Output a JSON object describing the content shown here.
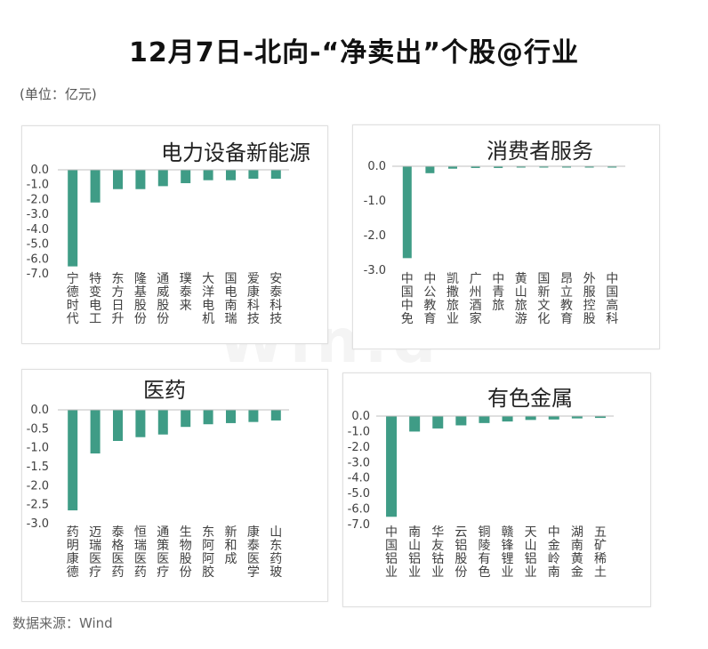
{
  "page": {
    "title": "12月7日-北向-“净卖出”个股@行业",
    "unit": "(单位：亿元)",
    "source": "数据来源：Wind",
    "watermark": "Win.d"
  },
  "colors": {
    "bar": "#3f9c86",
    "axis": "#bfbfbf",
    "text": "#404040"
  },
  "chart_data": [
    {
      "type": "bar",
      "title": "电力设备新能源",
      "categories": [
        "宁德时代",
        "特变电工",
        "东方日升",
        "隆基股份",
        "通威股份",
        "璞泰来",
        "大洋电机",
        "国电南瑞",
        "爱康科技",
        "安泰科技"
      ],
      "values": [
        -6.5,
        -2.2,
        -1.3,
        -1.3,
        -1.1,
        -0.9,
        -0.7,
        -0.7,
        -0.6,
        -0.6
      ],
      "ylim": [
        -7.0,
        0.0
      ],
      "yticks": [
        "0.0",
        "-1.0",
        "-2.0",
        "-3.0",
        "-4.0",
        "-5.0",
        "-6.0",
        "-7.0"
      ],
      "xlabel": "",
      "ylabel": ""
    },
    {
      "type": "bar",
      "title": "消费者服务",
      "categories": [
        "中国中免",
        "中公教育",
        "凯撒旅业",
        "广州酒家",
        "中青旅",
        "黄山旅游",
        "国新文化",
        "昂立教育",
        "外服控股",
        "中国高科"
      ],
      "values": [
        -2.65,
        -0.2,
        -0.07,
        -0.05,
        -0.05,
        -0.02,
        -0.01,
        -0.01,
        -0.01,
        -0.01
      ],
      "ylim": [
        -3.0,
        0.0
      ],
      "yticks": [
        "0.0",
        "-1.0",
        "-2.0",
        "-3.0"
      ],
      "xlabel": "",
      "ylabel": ""
    },
    {
      "type": "bar",
      "title": "医药",
      "categories": [
        "药明康德",
        "迈瑞医疗",
        "泰格医药",
        "恒瑞医药",
        "通策医疗",
        "生物股份",
        "东阿阿胶",
        "新和成",
        "康泰医学",
        "山东药玻"
      ],
      "values": [
        -2.65,
        -1.15,
        -0.82,
        -0.72,
        -0.65,
        -0.45,
        -0.38,
        -0.35,
        -0.32,
        -0.28
      ],
      "ylim": [
        -3.0,
        0.0
      ],
      "yticks": [
        "0.0",
        "-0.5",
        "-1.0",
        "-1.5",
        "-2.0",
        "-2.5",
        "-3.0"
      ],
      "xlabel": "",
      "ylabel": ""
    },
    {
      "type": "bar",
      "title": "有色金属",
      "categories": [
        "中国铝业",
        "南山铝业",
        "华友钴业",
        "云铝股份",
        "铜陵有色",
        "赣锋锂业",
        "天山铝业",
        "中金岭南",
        "湖南黄金",
        "五矿稀土"
      ],
      "values": [
        -6.5,
        -1.0,
        -0.8,
        -0.6,
        -0.45,
        -0.35,
        -0.25,
        -0.22,
        -0.15,
        -0.12
      ],
      "ylim": [
        -7.0,
        0.0
      ],
      "yticks": [
        "0.0",
        "-1.0",
        "-2.0",
        "-3.0",
        "-4.0",
        "-5.0",
        "-6.0",
        "-7.0"
      ],
      "xlabel": "",
      "ylabel": ""
    }
  ]
}
